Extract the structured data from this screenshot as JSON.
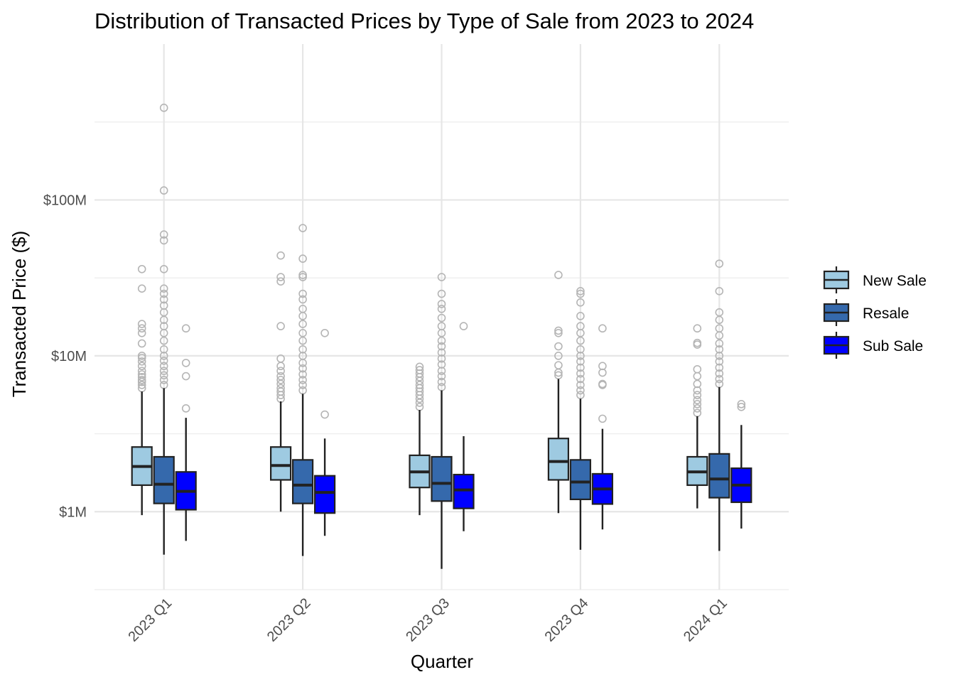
{
  "chart_data": {
    "type": "boxplot",
    "title": "Distribution of Transacted Prices by Type of Sale from 2023 to 2024",
    "xlabel": "Quarter",
    "ylabel": "Transacted Price ($)",
    "y_scale": "log10",
    "ylim": [
      320000,
      550000000
    ],
    "y_ticks": [
      {
        "value": 1000000,
        "label": "$1M"
      },
      {
        "value": 10000000,
        "label": "$10M"
      },
      {
        "value": 100000000,
        "label": "$100M"
      }
    ],
    "y_minor_gridlines": [
      316228,
      3162278,
      31622777,
      316227766
    ],
    "grid": true,
    "legend_position": "right",
    "categories": [
      "2023 Q1",
      "2023 Q2",
      "2023 Q3",
      "2023 Q4",
      "2024 Q1"
    ],
    "series": [
      {
        "name": "New Sale",
        "color": "#9ecae1",
        "boxes": [
          {
            "whisker_low": 950000,
            "q1": 1480000,
            "median": 1950000,
            "q3": 2600000,
            "whisker_high": 5900000,
            "outliers": [
              6200000,
              6500000,
              6800000,
              7000000,
              7300000,
              7600000,
              8000000,
              8600000,
              9200000,
              9700000,
              10000000,
              12000000,
              14000000,
              15000000,
              16000000,
              27000000,
              36000000
            ]
          },
          {
            "whisker_low": 1000000,
            "q1": 1600000,
            "median": 1980000,
            "q3": 2600000,
            "whisker_high": 5100000,
            "outliers": [
              5300000,
              5600000,
              5900000,
              6200000,
              6600000,
              7000000,
              7400000,
              8000000,
              8600000,
              9600000,
              15500000,
              30000000,
              32000000,
              44000000
            ]
          },
          {
            "whisker_low": 950000,
            "q1": 1430000,
            "median": 1800000,
            "q3": 2300000,
            "whisker_high": 4500000,
            "outliers": [
              4700000,
              5000000,
              5300000,
              5600000,
              5900000,
              6200000,
              6500000,
              6900000,
              7300000,
              7700000,
              8100000,
              8500000
            ]
          },
          {
            "whisker_low": 980000,
            "q1": 1600000,
            "median": 2100000,
            "q3": 2950000,
            "whisker_high": 7100000,
            "outliers": [
              7500000,
              7800000,
              8700000,
              10000000,
              11500000,
              14000000,
              14500000,
              33000000
            ]
          },
          {
            "whisker_low": 1050000,
            "q1": 1480000,
            "median": 1800000,
            "q3": 2250000,
            "whisker_high": 4100000,
            "outliers": [
              4300000,
              4600000,
              4900000,
              5200000,
              5600000,
              6000000,
              6600000,
              7400000,
              8200000,
              11800000,
              12100000,
              15000000
            ]
          }
        ]
      },
      {
        "name": "Resale",
        "color": "#3569ac",
        "boxes": [
          {
            "whisker_low": 530000,
            "q1": 1130000,
            "median": 1500000,
            "q3": 2250000,
            "whisker_high": 6200000,
            "outliers": [
              6500000,
              7000000,
              7500000,
              8000000,
              8600000,
              9300000,
              10000000,
              11000000,
              12500000,
              14000000,
              15500000,
              17000000,
              19000000,
              21000000,
              23000000,
              25000000,
              27000000,
              36000000,
              55000000,
              60000000,
              115000000,
              390000000
            ]
          },
          {
            "whisker_low": 520000,
            "q1": 1130000,
            "median": 1480000,
            "q3": 2150000,
            "whisker_high": 5700000,
            "outliers": [
              6000000,
              6500000,
              7000000,
              7600000,
              8300000,
              9000000,
              10000000,
              11000000,
              12500000,
              14000000,
              16000000,
              18000000,
              20000000,
              23000000,
              25000000,
              32000000,
              33000000,
              42000000,
              66000000
            ]
          },
          {
            "whisker_low": 430000,
            "q1": 1170000,
            "median": 1520000,
            "q3": 2250000,
            "whisker_high": 6000000,
            "outliers": [
              6300000,
              6800000,
              7400000,
              8000000,
              8800000,
              9600000,
              10500000,
              11500000,
              12500000,
              14000000,
              15500000,
              17500000,
              20000000,
              21500000,
              25000000,
              32000000
            ]
          },
          {
            "whisker_low": 570000,
            "q1": 1200000,
            "median": 1550000,
            "q3": 2150000,
            "whisker_high": 5300000,
            "outliers": [
              5600000,
              6000000,
              6500000,
              7100000,
              7700000,
              8400000,
              9200000,
              10000000,
              11000000,
              12500000,
              14000000,
              15500000,
              18000000,
              22000000,
              25000000,
              26000000
            ]
          },
          {
            "whisker_low": 560000,
            "q1": 1230000,
            "median": 1620000,
            "q3": 2350000,
            "whisker_high": 6300000,
            "outliers": [
              6600000,
              7100000,
              7700000,
              8400000,
              9200000,
              10000000,
              11000000,
              12000000,
              13500000,
              15000000,
              17000000,
              19000000,
              26000000,
              39000000
            ]
          }
        ]
      },
      {
        "name": "Sub Sale",
        "color": "#0000ff",
        "boxes": [
          {
            "whisker_low": 650000,
            "q1": 1030000,
            "median": 1350000,
            "q3": 1800000,
            "whisker_high": 4000000,
            "outliers": [
              4600000,
              7400000,
              9000000,
              15000000
            ]
          },
          {
            "whisker_low": 700000,
            "q1": 980000,
            "median": 1330000,
            "q3": 1700000,
            "whisker_high": 2950000,
            "outliers": [
              4200000,
              14000000
            ]
          },
          {
            "whisker_low": 750000,
            "q1": 1050000,
            "median": 1380000,
            "q3": 1730000,
            "whisker_high": 3050000,
            "outliers": [
              15500000
            ]
          },
          {
            "whisker_low": 770000,
            "q1": 1120000,
            "median": 1400000,
            "q3": 1750000,
            "whisker_high": 3400000,
            "outliers": [
              3950000,
              6500000,
              6600000,
              7800000,
              8600000,
              15000000
            ]
          },
          {
            "whisker_low": 780000,
            "q1": 1150000,
            "median": 1480000,
            "q3": 1900000,
            "whisker_high": 3600000,
            "outliers": [
              4700000,
              4900000
            ]
          }
        ]
      }
    ]
  }
}
